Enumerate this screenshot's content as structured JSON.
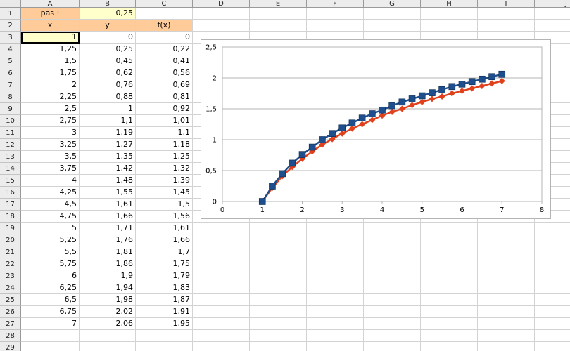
{
  "spreadsheet": {
    "columns": [
      "A",
      "B",
      "C",
      "D",
      "E",
      "F",
      "G",
      "H",
      "I",
      "J"
    ],
    "rows": [
      "1",
      "2",
      "3",
      "4",
      "5",
      "6",
      "7",
      "8",
      "9",
      "10",
      "11",
      "12",
      "13",
      "14",
      "15",
      "16",
      "17",
      "18",
      "19",
      "20",
      "21",
      "22",
      "23",
      "24",
      "25",
      "26",
      "27",
      "28",
      "29"
    ],
    "header_row": {
      "step_label": "pas :",
      "step_value": "0,25",
      "x_label": "x",
      "y_label": "y",
      "fx_label": "f(x)"
    },
    "data": [
      [
        "1",
        "0",
        "0"
      ],
      [
        "1,25",
        "0,25",
        "0,22"
      ],
      [
        "1,5",
        "0,45",
        "0,41"
      ],
      [
        "1,75",
        "0,62",
        "0,56"
      ],
      [
        "2",
        "0,76",
        "0,69"
      ],
      [
        "2,25",
        "0,88",
        "0,81"
      ],
      [
        "2,5",
        "1",
        "0,92"
      ],
      [
        "2,75",
        "1,1",
        "1,01"
      ],
      [
        "3",
        "1,19",
        "1,1"
      ],
      [
        "3,25",
        "1,27",
        "1,18"
      ],
      [
        "3,5",
        "1,35",
        "1,25"
      ],
      [
        "3,75",
        "1,42",
        "1,32"
      ],
      [
        "4",
        "1,48",
        "1,39"
      ],
      [
        "4,25",
        "1,55",
        "1,45"
      ],
      [
        "4,5",
        "1,61",
        "1,5"
      ],
      [
        "4,75",
        "1,66",
        "1,56"
      ],
      [
        "5",
        "1,71",
        "1,61"
      ],
      [
        "5,25",
        "1,76",
        "1,66"
      ],
      [
        "5,5",
        "1,81",
        "1,7"
      ],
      [
        "5,75",
        "1,86",
        "1,75"
      ],
      [
        "6",
        "1,9",
        "1,79"
      ],
      [
        "6,25",
        "1,94",
        "1,83"
      ],
      [
        "6,5",
        "1,98",
        "1,87"
      ],
      [
        "6,75",
        "2,02",
        "1,91"
      ],
      [
        "7",
        "2,06",
        "1,95"
      ]
    ],
    "colors": {
      "orange": "#ffcc99",
      "yellow": "#ffffcc"
    }
  },
  "chart_data": {
    "type": "line",
    "x": [
      1,
      1.25,
      1.5,
      1.75,
      2,
      2.25,
      2.5,
      2.75,
      3,
      3.25,
      3.5,
      3.75,
      4,
      4.25,
      4.5,
      4.75,
      5,
      5.25,
      5.5,
      5.75,
      6,
      6.25,
      6.5,
      6.75,
      7
    ],
    "series": [
      {
        "values": [
          0,
          0.25,
          0.45,
          0.62,
          0.76,
          0.88,
          1,
          1.1,
          1.19,
          1.27,
          1.35,
          1.42,
          1.48,
          1.55,
          1.61,
          1.66,
          1.71,
          1.76,
          1.81,
          1.86,
          1.9,
          1.94,
          1.98,
          2.02,
          2.06
        ],
        "color": "#1f4e8c",
        "marker": "square"
      },
      {
        "values": [
          0,
          0.22,
          0.41,
          0.56,
          0.69,
          0.81,
          0.92,
          1.01,
          1.1,
          1.18,
          1.25,
          1.32,
          1.39,
          1.45,
          1.5,
          1.56,
          1.61,
          1.66,
          1.7,
          1.75,
          1.79,
          1.83,
          1.87,
          1.91,
          1.95
        ],
        "color": "#e0401c",
        "marker": "diamond"
      }
    ],
    "xlim": [
      0,
      8
    ],
    "ylim": [
      0,
      2.5
    ],
    "xticks": [
      "0",
      "1",
      "2",
      "3",
      "4",
      "5",
      "6",
      "7",
      "8"
    ],
    "yticks": [
      "0",
      "0,5",
      "1",
      "1,5",
      "2",
      "2,5"
    ],
    "grid": "horizontal",
    "legend": "none"
  }
}
